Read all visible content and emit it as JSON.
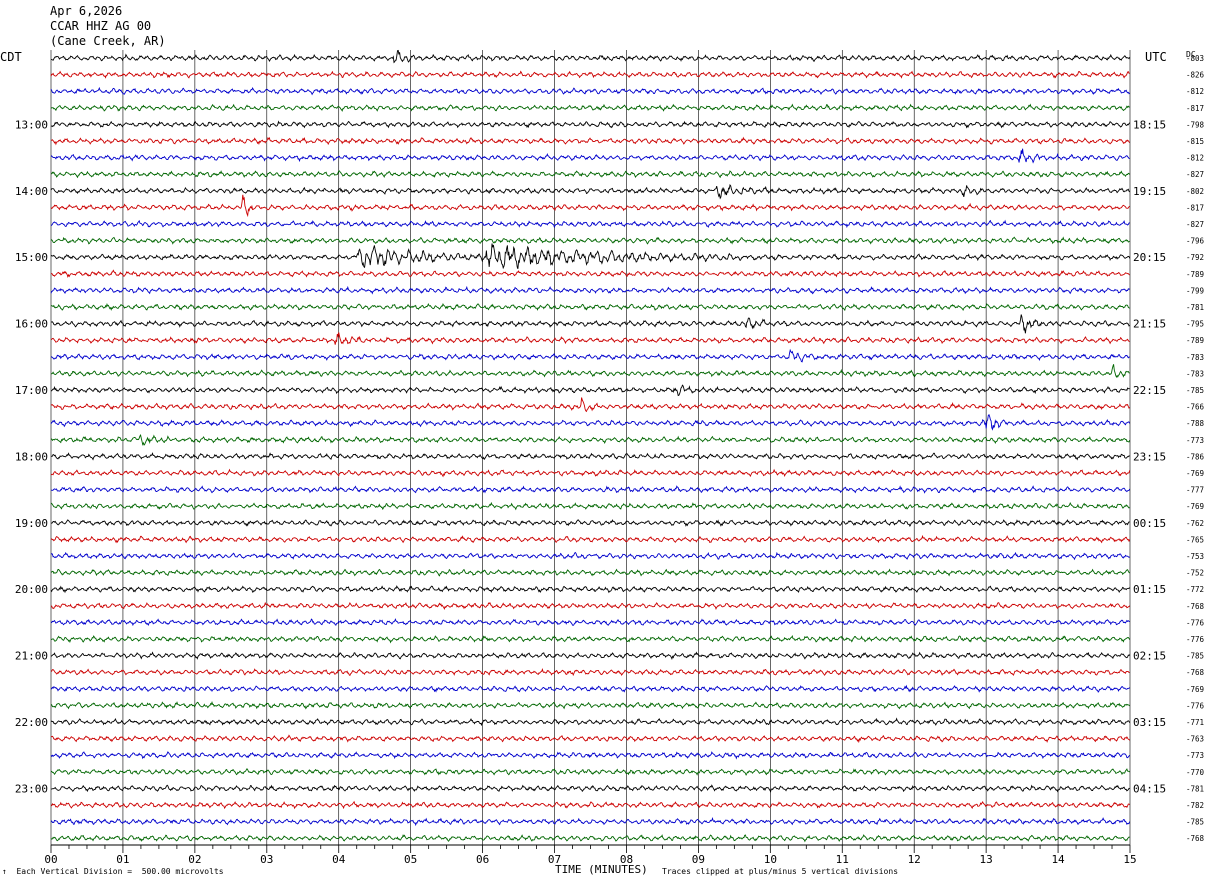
{
  "header": {
    "date": "Apr 6,2026",
    "station": "CCAR HHZ AG 00",
    "location": "(Cane Creek, AR)"
  },
  "left_axis_title": "CDT",
  "right_axis_title": "UTC",
  "dc_title": "DC",
  "footer": {
    "left_prefix": "↑",
    "scale_note": "Each Vertical Division =  500.00 microvolts",
    "x_axis_title": "TIME (MINUTES)",
    "clip_note": "Traces clipped at plus/minus 5 vertical divisions"
  },
  "colors": {
    "trace_cycle": [
      "#000000",
      "#cc0000",
      "#0000cc",
      "#006600"
    ],
    "grid": "#000000",
    "background": "#ffffff"
  },
  "chart_data": {
    "type": "line",
    "subtype": "helicorder",
    "x_axis": {
      "label": "TIME (MINUTES)",
      "range": [
        0,
        15
      ],
      "ticks": [
        "00",
        "01",
        "02",
        "03",
        "04",
        "05",
        "06",
        "07",
        "08",
        "09",
        "10",
        "11",
        "12",
        "13",
        "14",
        "15"
      ]
    },
    "minutes_per_line": 15,
    "line_count": 48,
    "left_hour_labels": [
      "13:00",
      "14:00",
      "15:00",
      "16:00",
      "17:00",
      "18:00",
      "19:00",
      "20:00",
      "21:00",
      "22:00",
      "23:00"
    ],
    "right_hour_labels": [
      "18:15",
      "19:15",
      "20:15",
      "21:15",
      "22:15",
      "23:15",
      "00:15",
      "01:15",
      "02:15",
      "03:15",
      "04:15"
    ],
    "hour_label_first_row": 4,
    "dc_offsets": [
      -803,
      -826,
      -812,
      -817,
      -798,
      -815,
      -812,
      -827,
      -802,
      -817,
      -827,
      -796,
      -792,
      -789,
      -799,
      -781,
      -795,
      -789,
      -783,
      -783,
      -785,
      -766,
      -788,
      -773,
      -786,
      -769,
      -777,
      -769,
      -762,
      -765,
      -753,
      -752,
      -772,
      -768,
      -776,
      -776,
      -785,
      -768,
      -769,
      -776,
      -771,
      -763,
      -773,
      -770,
      -781,
      -782,
      -785,
      -768
    ],
    "events": [
      {
        "row": 0,
        "minute": 4.8,
        "amplitude": 1.6,
        "duration": 0.3
      },
      {
        "row": 6,
        "minute": 13.5,
        "amplitude": 1.4,
        "duration": 0.4
      },
      {
        "row": 8,
        "minute": 9.3,
        "amplitude": 1.3,
        "duration": 0.8
      },
      {
        "row": 8,
        "minute": 12.7,
        "amplitude": 1.2,
        "duration": 0.3
      },
      {
        "row": 9,
        "minute": 2.7,
        "amplitude": 3.0,
        "duration": 0.15
      },
      {
        "row": 12,
        "minute": 4.3,
        "amplitude": 2.6,
        "duration": 1.8
      },
      {
        "row": 12,
        "minute": 6.1,
        "amplitude": 2.8,
        "duration": 3.5
      },
      {
        "row": 16,
        "minute": 9.7,
        "amplitude": 1.4,
        "duration": 0.3
      },
      {
        "row": 16,
        "minute": 13.5,
        "amplitude": 2.2,
        "duration": 0.3
      },
      {
        "row": 17,
        "minute": 4.0,
        "amplitude": 1.4,
        "duration": 0.4
      },
      {
        "row": 18,
        "minute": 10.3,
        "amplitude": 1.3,
        "duration": 0.4
      },
      {
        "row": 19,
        "minute": 14.8,
        "amplitude": 1.8,
        "duration": 0.2
      },
      {
        "row": 20,
        "minute": 8.7,
        "amplitude": 1.3,
        "duration": 0.3
      },
      {
        "row": 21,
        "minute": 7.4,
        "amplitude": 1.8,
        "duration": 0.2
      },
      {
        "row": 22,
        "minute": 13.0,
        "amplitude": 2.4,
        "duration": 0.3
      },
      {
        "row": 23,
        "minute": 1.2,
        "amplitude": 1.2,
        "duration": 0.5
      }
    ]
  }
}
